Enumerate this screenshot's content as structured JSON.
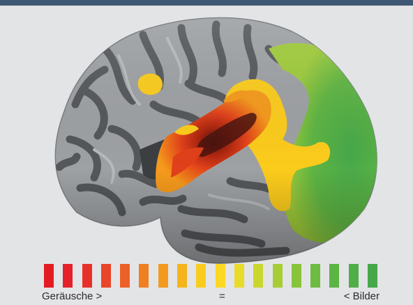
{
  "legend": {
    "left_label": "Geräusche >",
    "middle_label": "=",
    "right_label": "< Bilder",
    "colors": [
      "#e31b23",
      "#e5222a",
      "#e7302a",
      "#e9452a",
      "#ec6127",
      "#ef7f22",
      "#f29a1f",
      "#f5b31c",
      "#f9cc1f",
      "#fbd823",
      "#e9db2a",
      "#cad630",
      "#a7cd34",
      "#88c43a",
      "#6dbb3f",
      "#5cb445",
      "#50ae48",
      "#46a84a"
    ]
  },
  "brain": {
    "activation_colors": {
      "sounds_strong": "#e0301e",
      "sounds_peak": "#5a1a12",
      "sounds_mid": "#ef7d1a",
      "neutral": "#fccc1c",
      "images_mid": "#9fcb3a",
      "images_strong": "#4da946"
    }
  }
}
